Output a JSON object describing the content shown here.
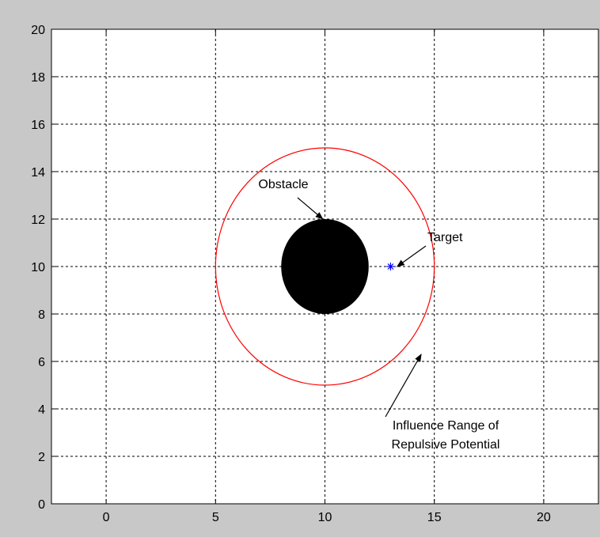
{
  "chart_data": {
    "type": "scatter",
    "title": "",
    "xlabel": "",
    "ylabel": "",
    "xlim": [
      -2.5,
      22.5
    ],
    "ylim": [
      0,
      20
    ],
    "xticks": [
      0,
      5,
      10,
      15,
      20
    ],
    "yticks": [
      0,
      2,
      4,
      6,
      8,
      10,
      12,
      14,
      16,
      18,
      20
    ],
    "grid": true,
    "legend": "none",
    "obstacle": {
      "center": [
        10,
        10
      ],
      "radius": 2,
      "color": "#000000"
    },
    "influence_range": {
      "center": [
        10,
        10
      ],
      "radius": 5,
      "color": "#ff0000"
    },
    "target": {
      "x": 13,
      "y": 10,
      "marker": "*",
      "color": "#0000ff"
    },
    "annotations": [
      {
        "id": "obstacle",
        "lines": [
          "Obstacle"
        ],
        "point": [
          9.9,
          12.0
        ]
      },
      {
        "id": "target",
        "lines": [
          "Target"
        ],
        "point": [
          13.3,
          10.0
        ]
      },
      {
        "id": "influence",
        "lines": [
          "Influence Range of",
          "Repulsive Potential"
        ],
        "point": [
          14.4,
          6.3
        ]
      }
    ]
  }
}
